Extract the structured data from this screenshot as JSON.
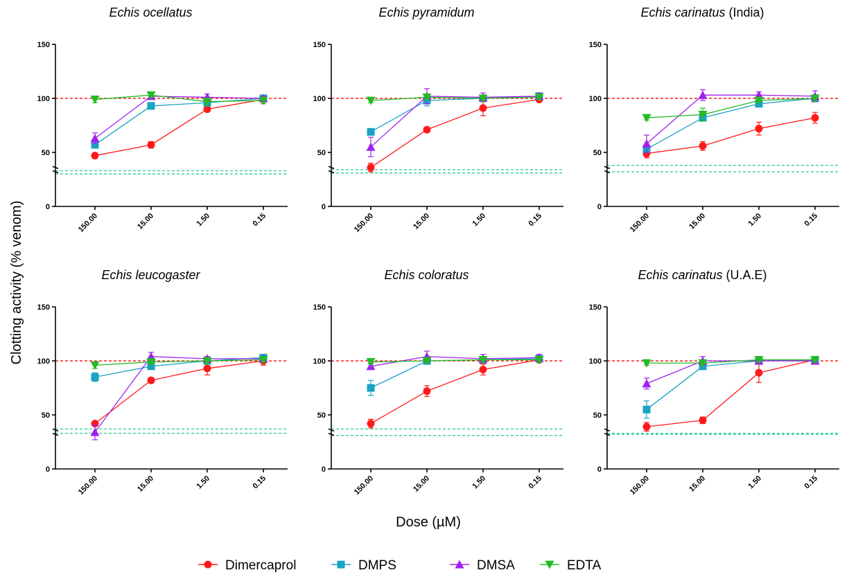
{
  "figure": {
    "ylabel": "Clotting activity (% venom)",
    "xlabel": "Dose (µM)"
  },
  "legend": [
    {
      "name": "Dimercaprol",
      "color": "#ff1a1a",
      "marker": "circle"
    },
    {
      "name": "DMPS",
      "color": "#1aa3c2",
      "marker": "square"
    },
    {
      "name": "DMSA",
      "color": "#a020f0",
      "marker": "triangle-up"
    },
    {
      "name": "EDTA",
      "color": "#22bb22",
      "marker": "triangle-down"
    }
  ],
  "chart_data": [
    {
      "type": "line",
      "title": "Echis ocellatus",
      "title_suffix": "",
      "categories": [
        "150.00",
        "15.00",
        "1.50",
        "0.15"
      ],
      "ylim": [
        0,
        150
      ],
      "yticks": [
        "0",
        "50",
        "100",
        "150"
      ],
      "reference_lines": [
        100,
        33,
        30
      ],
      "series": [
        {
          "name": "Dimercaprol",
          "values": [
            47,
            57,
            90,
            99
          ],
          "errors": [
            2,
            3,
            2,
            2
          ]
        },
        {
          "name": "DMPS",
          "values": [
            57,
            93,
            96,
            100
          ],
          "errors": [
            3,
            2,
            3,
            3
          ]
        },
        {
          "name": "DMSA",
          "values": [
            63,
            102,
            101,
            100
          ],
          "errors": [
            5,
            3,
            3,
            2
          ]
        },
        {
          "name": "EDTA",
          "values": [
            99,
            103,
            97,
            98
          ],
          "errors": [
            3,
            2,
            3,
            3
          ]
        }
      ]
    },
    {
      "type": "line",
      "title": "Echis pyramidum",
      "title_suffix": "",
      "categories": [
        "150.00",
        "15.00",
        "1.50",
        "0.15"
      ],
      "ylim": [
        0,
        150
      ],
      "yticks": [
        "0",
        "50",
        "100",
        "150"
      ],
      "reference_lines": [
        100,
        34,
        31
      ],
      "series": [
        {
          "name": "Dimercaprol",
          "values": [
            36,
            71,
            91,
            99
          ],
          "errors": [
            4,
            2,
            7,
            2
          ]
        },
        {
          "name": "DMPS",
          "values": [
            69,
            98,
            100,
            102
          ],
          "errors": [
            3,
            5,
            3,
            3
          ]
        },
        {
          "name": "DMSA",
          "values": [
            55,
            102,
            101,
            102
          ],
          "errors": [
            9,
            7,
            4,
            3
          ]
        },
        {
          "name": "EDTA",
          "values": [
            98,
            101,
            100,
            101
          ],
          "errors": [
            2,
            2,
            2,
            2
          ]
        }
      ]
    },
    {
      "type": "line",
      "title": "Echis carinatus",
      "title_suffix": "(India)",
      "categories": [
        "150.00",
        "15.00",
        "1.50",
        "0.15"
      ],
      "ylim": [
        0,
        150
      ],
      "yticks": [
        "0",
        "50",
        "100",
        "150"
      ],
      "reference_lines": [
        100,
        38,
        32
      ],
      "series": [
        {
          "name": "Dimercaprol",
          "values": [
            49,
            56,
            72,
            82
          ],
          "errors": [
            4,
            4,
            6,
            5
          ]
        },
        {
          "name": "DMPS",
          "values": [
            53,
            82,
            95,
            100
          ],
          "errors": [
            3,
            3,
            2,
            2
          ]
        },
        {
          "name": "DMSA",
          "values": [
            58,
            103,
            103,
            102
          ],
          "errors": [
            8,
            5,
            3,
            5
          ]
        },
        {
          "name": "EDTA",
          "values": [
            82,
            85,
            98,
            100
          ],
          "errors": [
            2,
            6,
            2,
            2
          ]
        }
      ]
    },
    {
      "type": "line",
      "title": "Echis leucogaster",
      "title_suffix": "",
      "categories": [
        "150.00",
        "15.00",
        "1.50",
        "0.15"
      ],
      "ylim": [
        0,
        150
      ],
      "yticks": [
        "0",
        "50",
        "100",
        "150"
      ],
      "reference_lines": [
        100,
        37,
        33
      ],
      "series": [
        {
          "name": "Dimercaprol",
          "values": [
            42,
            82,
            93,
            100
          ],
          "errors": [
            2,
            2,
            6,
            4
          ]
        },
        {
          "name": "DMPS",
          "values": [
            85,
            95,
            100,
            103
          ],
          "errors": [
            4,
            2,
            2,
            2
          ]
        },
        {
          "name": "DMSA",
          "values": [
            34,
            104,
            102,
            102
          ],
          "errors": [
            7,
            4,
            2,
            2
          ]
        },
        {
          "name": "EDTA",
          "values": [
            96,
            99,
            100,
            101
          ],
          "errors": [
            3,
            2,
            2,
            2
          ]
        }
      ]
    },
    {
      "type": "line",
      "title": "Echis coloratus",
      "title_suffix": "",
      "categories": [
        "150.00",
        "15.00",
        "1.50",
        "0.15"
      ],
      "ylim": [
        0,
        150
      ],
      "yticks": [
        "0",
        "50",
        "100",
        "150"
      ],
      "reference_lines": [
        100,
        37,
        31
      ],
      "series": [
        {
          "name": "Dimercaprol",
          "values": [
            42,
            72,
            92,
            101
          ],
          "errors": [
            4,
            5,
            5,
            2
          ]
        },
        {
          "name": "DMPS",
          "values": [
            75,
            100,
            101,
            102
          ],
          "errors": [
            7,
            2,
            3,
            3
          ]
        },
        {
          "name": "DMSA",
          "values": [
            95,
            104,
            102,
            103
          ],
          "errors": [
            3,
            5,
            4,
            3
          ]
        },
        {
          "name": "EDTA",
          "values": [
            99,
            100,
            101,
            101
          ],
          "errors": [
            2,
            2,
            2,
            2
          ]
        }
      ]
    },
    {
      "type": "line",
      "title": "Echis carinatus",
      "title_suffix": "(U.A.E)",
      "categories": [
        "150.00",
        "15.00",
        "1.50",
        "0.15"
      ],
      "ylim": [
        0,
        150
      ],
      "yticks": [
        "0",
        "50",
        "100",
        "150"
      ],
      "reference_lines": [
        100,
        33,
        32
      ],
      "series": [
        {
          "name": "Dimercaprol",
          "values": [
            39,
            45,
            89,
            101
          ],
          "errors": [
            4,
            3,
            9,
            2
          ]
        },
        {
          "name": "DMPS",
          "values": [
            55,
            95,
            100,
            101
          ],
          "errors": [
            8,
            3,
            2,
            2
          ]
        },
        {
          "name": "DMSA",
          "values": [
            79,
            100,
            100,
            100
          ],
          "errors": [
            5,
            4,
            2,
            2
          ]
        },
        {
          "name": "EDTA",
          "values": [
            98,
            98,
            101,
            101
          ],
          "errors": [
            2,
            2,
            2,
            2
          ]
        }
      ]
    }
  ]
}
